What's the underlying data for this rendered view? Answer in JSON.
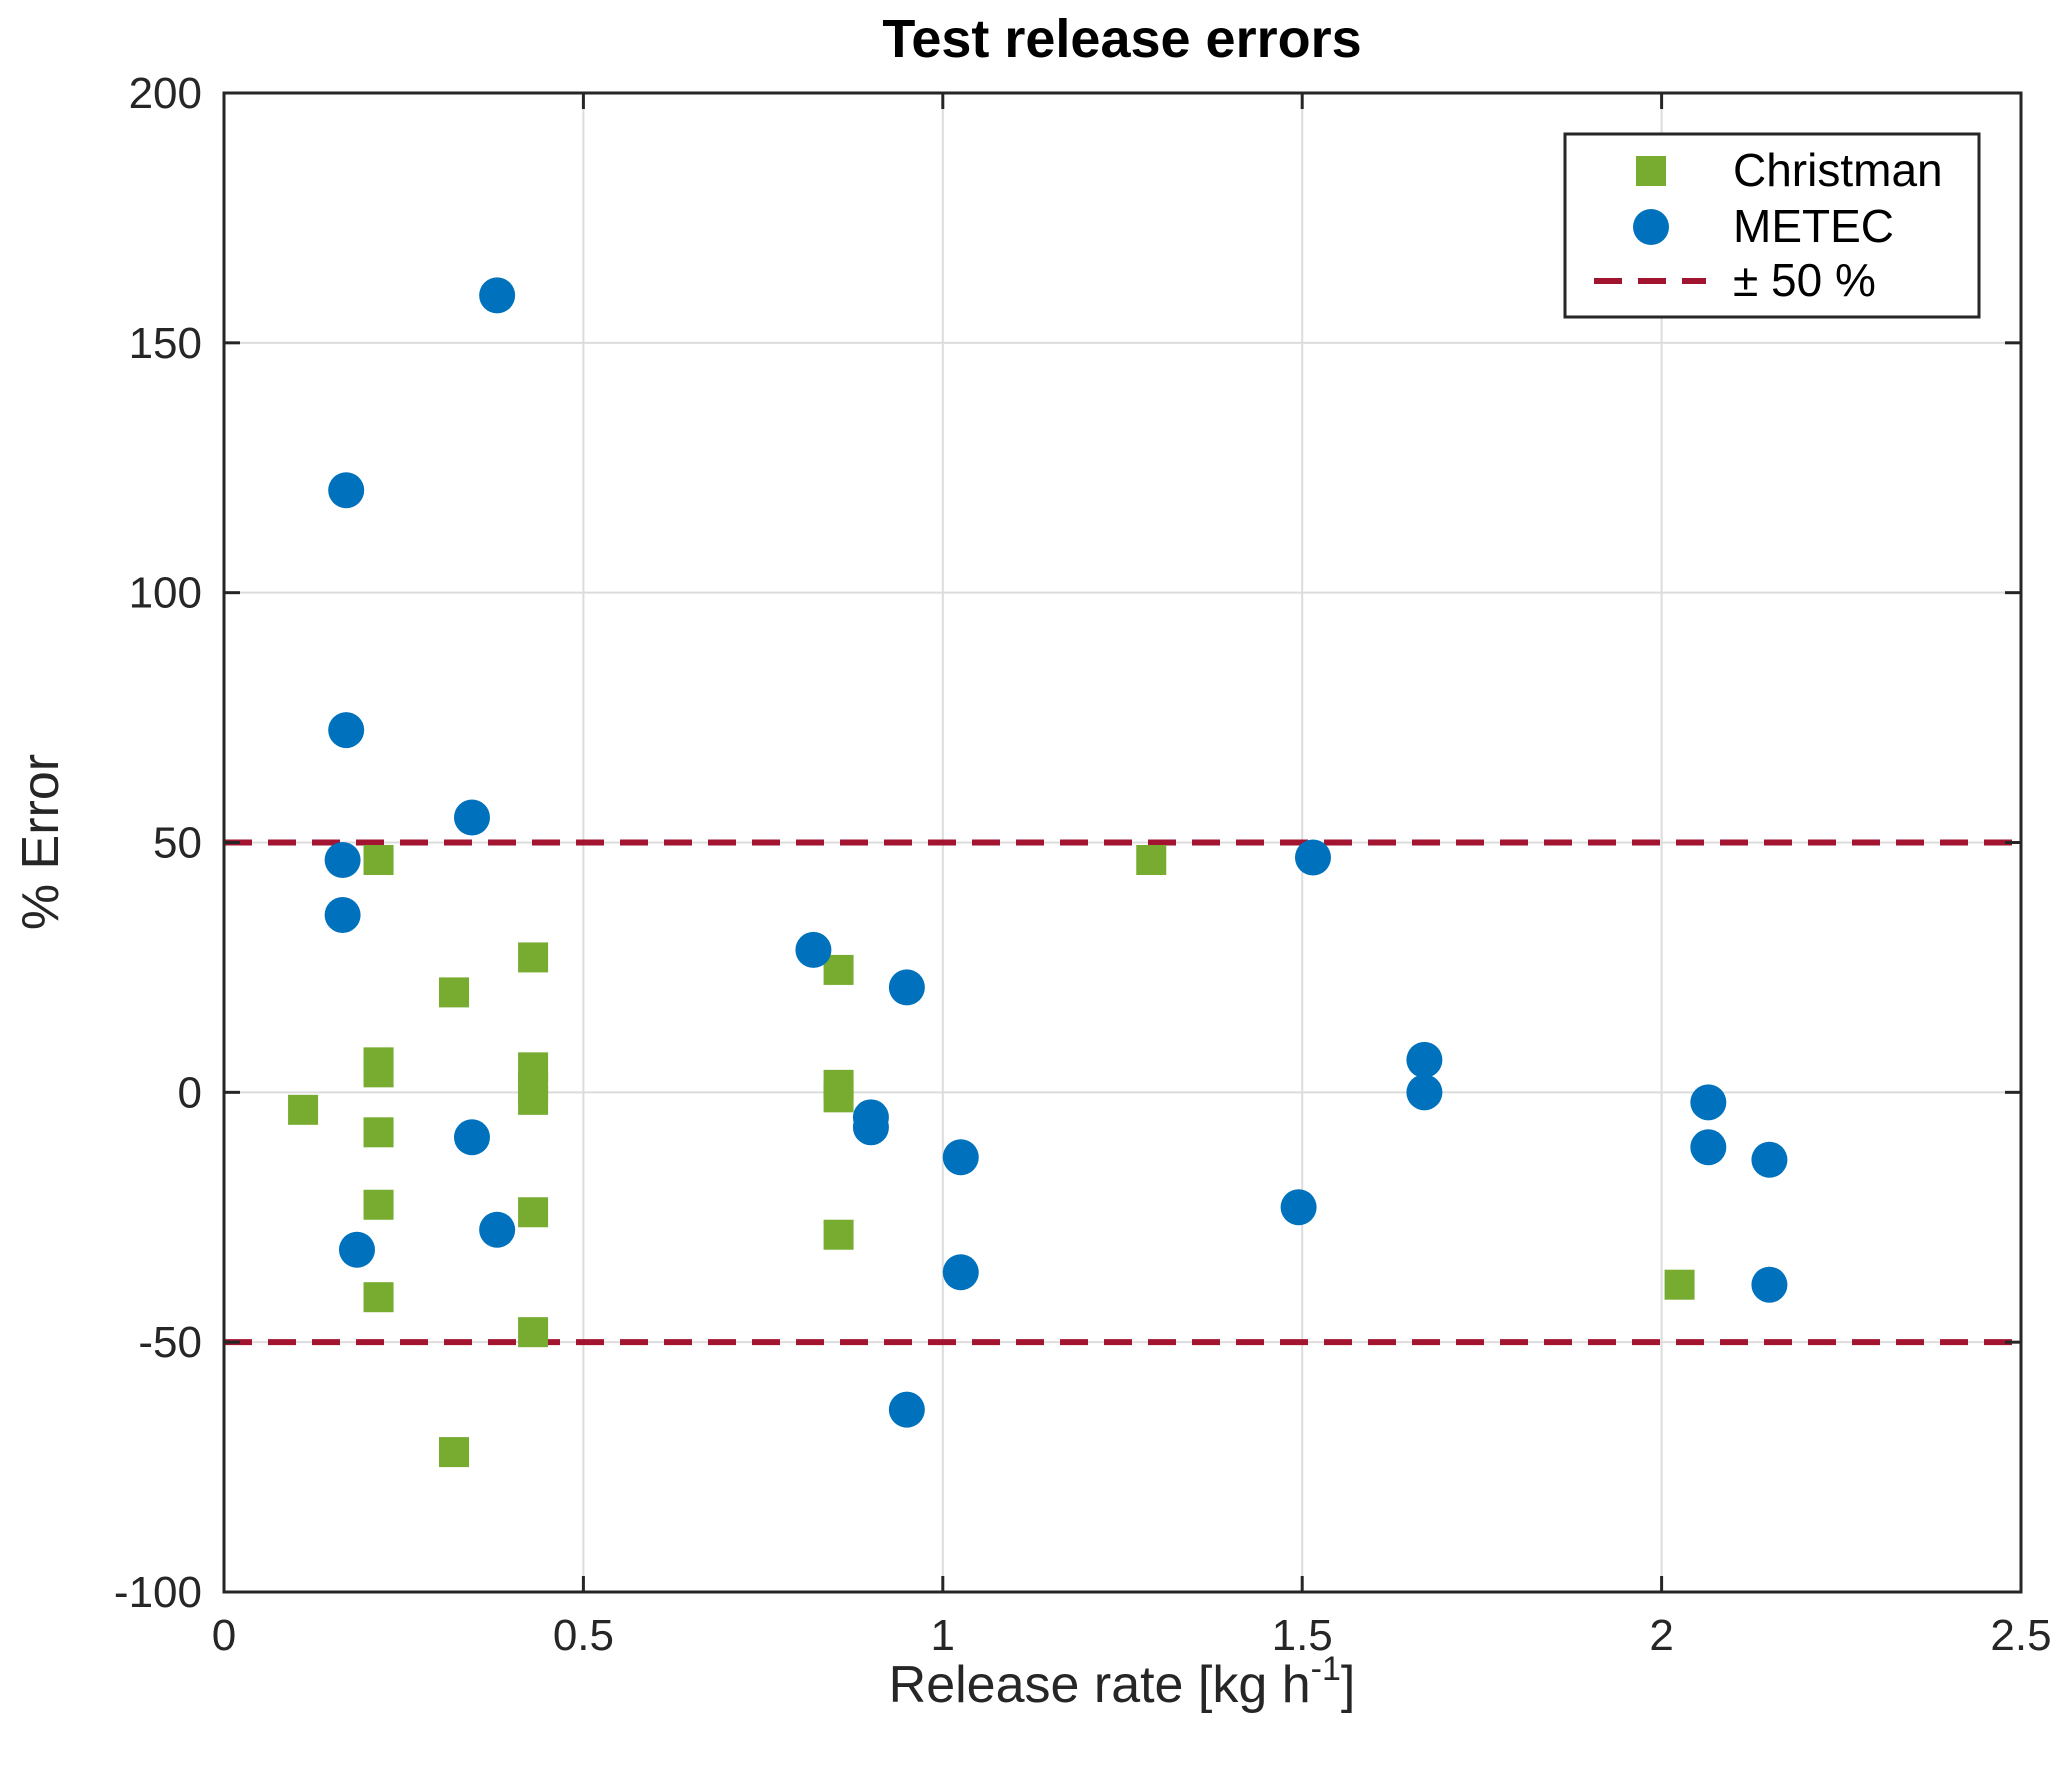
{
  "chart_data": {
    "type": "scatter",
    "title": "Test release errors",
    "xlabel": "Release rate [kg h",
    "xlabel_superscript": "-1",
    "xlabel_suffix": "]",
    "ylabel": "% Error",
    "xlim": [
      0,
      2.5
    ],
    "ylim": [
      -100,
      200
    ],
    "xticks": [
      0,
      0.5,
      1,
      1.5,
      2,
      2.5
    ],
    "xtick_labels": [
      "0",
      "0.5",
      "1",
      "1.5",
      "2",
      "2.5"
    ],
    "yticks": [
      -100,
      -50,
      0,
      50,
      100,
      150,
      200
    ],
    "ytick_labels": [
      "-100",
      "-50",
      "0",
      "50",
      "100",
      "150",
      "200"
    ],
    "grid": true,
    "legend_position": "top-right",
    "series": [
      {
        "name": "Christman",
        "marker": "square",
        "color": "#77AC30",
        "points": [
          {
            "x": 0.11,
            "y": -3.5
          },
          {
            "x": 0.215,
            "y": 46.5
          },
          {
            "x": 0.215,
            "y": 6
          },
          {
            "x": 0.215,
            "y": 4
          },
          {
            "x": 0.215,
            "y": -8
          },
          {
            "x": 0.215,
            "y": -22.5
          },
          {
            "x": 0.215,
            "y": -41
          },
          {
            "x": 0.32,
            "y": 20
          },
          {
            "x": 0.32,
            "y": -72
          },
          {
            "x": 0.43,
            "y": 27
          },
          {
            "x": 0.43,
            "y": 5
          },
          {
            "x": 0.43,
            "y": 1
          },
          {
            "x": 0.43,
            "y": -1.5
          },
          {
            "x": 0.43,
            "y": -24
          },
          {
            "x": 0.43,
            "y": -48
          },
          {
            "x": 0.855,
            "y": 24.5
          },
          {
            "x": 0.855,
            "y": 1.5
          },
          {
            "x": 0.855,
            "y": -1
          },
          {
            "x": 0.855,
            "y": -28.5
          },
          {
            "x": 1.29,
            "y": 46.5
          },
          {
            "x": 2.025,
            "y": -38.5
          }
        ]
      },
      {
        "name": "METEC",
        "marker": "circle",
        "color": "#0072BD",
        "points": [
          {
            "x": 0.17,
            "y": 120.5
          },
          {
            "x": 0.17,
            "y": 72.5
          },
          {
            "x": 0.165,
            "y": 46.5
          },
          {
            "x": 0.165,
            "y": 35.5
          },
          {
            "x": 0.185,
            "y": -31.5
          },
          {
            "x": 0.345,
            "y": 55
          },
          {
            "x": 0.345,
            "y": -9
          },
          {
            "x": 0.38,
            "y": 159.5
          },
          {
            "x": 0.38,
            "y": -27.5
          },
          {
            "x": 0.82,
            "y": 28.5
          },
          {
            "x": 0.9,
            "y": -5
          },
          {
            "x": 0.9,
            "y": -7
          },
          {
            "x": 0.95,
            "y": 21
          },
          {
            "x": 0.95,
            "y": -63.5
          },
          {
            "x": 1.025,
            "y": -13
          },
          {
            "x": 1.025,
            "y": -36
          },
          {
            "x": 1.495,
            "y": -23
          },
          {
            "x": 1.515,
            "y": 47
          },
          {
            "x": 1.67,
            "y": 6.5
          },
          {
            "x": 1.67,
            "y": 0
          },
          {
            "x": 2.065,
            "y": -2
          },
          {
            "x": 2.065,
            "y": -11
          },
          {
            "x": 2.15,
            "y": -13.5
          },
          {
            "x": 2.15,
            "y": -38.5
          }
        ]
      },
      {
        "name": "± 50 %",
        "marker": "dashed-line",
        "color": "#A2142F",
        "lines_y": [
          50,
          -50
        ]
      }
    ]
  }
}
